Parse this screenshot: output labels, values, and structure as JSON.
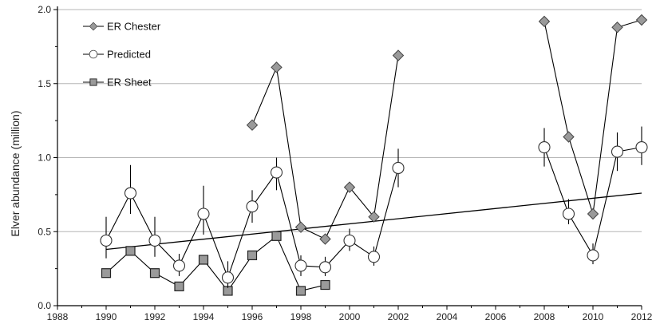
{
  "chart_data": {
    "type": "line",
    "title": "",
    "xlabel": "",
    "ylabel": "Elver abundance (million)",
    "xlim": [
      1988,
      2012
    ],
    "ylim": [
      0.0,
      2.0
    ],
    "x_ticks": [
      1988,
      1990,
      1992,
      1994,
      1996,
      1998,
      2000,
      2002,
      2004,
      2006,
      2008,
      2010,
      2012
    ],
    "y_ticks": [
      0.0,
      0.5,
      1.0,
      1.5,
      2.0
    ],
    "y_tick_labels": [
      "0.0",
      "0.5",
      "1.0",
      "1.5",
      "2.0"
    ],
    "grid": "horizontal",
    "legend": "top-left",
    "series": [
      {
        "name": "ER Chester",
        "marker": "diamond",
        "color": "#9a9a9a",
        "segments": [
          [
            [
              1996,
              1.22
            ],
            [
              1997,
              1.61
            ],
            [
              1998,
              0.53
            ],
            [
              1999,
              0.45
            ],
            [
              2000,
              0.8
            ],
            [
              2001,
              0.6
            ],
            [
              2002,
              1.69
            ]
          ],
          [
            [
              2008,
              1.92
            ],
            [
              2009,
              1.14
            ],
            [
              2010,
              0.62
            ],
            [
              2011,
              1.88
            ],
            [
              2012,
              1.93
            ]
          ]
        ]
      },
      {
        "name": "Predicted",
        "marker": "circle",
        "color": "#ffffff",
        "segments": [
          [
            [
              1990,
              0.44
            ],
            [
              1991,
              0.76
            ],
            [
              1992,
              0.44
            ],
            [
              1993,
              0.27
            ],
            [
              1994,
              0.62
            ],
            [
              1995,
              0.19
            ],
            [
              1996,
              0.67
            ],
            [
              1997,
              0.9
            ],
            [
              1998,
              0.27
            ],
            [
              1999,
              0.26
            ],
            [
              2000,
              0.44
            ],
            [
              2001,
              0.33
            ],
            [
              2002,
              0.93
            ]
          ],
          [
            [
              2008,
              1.07
            ],
            [
              2009,
              0.62
            ],
            [
              2010,
              0.34
            ],
            [
              2011,
              1.04
            ],
            [
              2012,
              1.07
            ]
          ]
        ],
        "error_bars": [
          [
            1990,
            0.32,
            0.6
          ],
          [
            1991,
            0.62,
            0.95
          ],
          [
            1992,
            0.33,
            0.6
          ],
          [
            1993,
            0.2,
            0.35
          ],
          [
            1994,
            0.48,
            0.81
          ],
          [
            1995,
            0.12,
            0.3
          ],
          [
            1996,
            0.56,
            0.78
          ],
          [
            1997,
            0.78,
            1.0
          ],
          [
            1998,
            0.2,
            0.34
          ],
          [
            1999,
            0.2,
            0.33
          ],
          [
            2000,
            0.37,
            0.52
          ],
          [
            2001,
            0.27,
            0.4
          ],
          [
            2002,
            0.8,
            1.06
          ],
          [
            2008,
            0.94,
            1.2
          ],
          [
            2009,
            0.55,
            0.72
          ],
          [
            2010,
            0.28,
            0.42
          ],
          [
            2011,
            0.91,
            1.17
          ],
          [
            2012,
            0.95,
            1.21
          ]
        ]
      },
      {
        "name": "ER Sheet",
        "marker": "square",
        "color": "#9a9a9a",
        "segments": [
          [
            [
              1990,
              0.22
            ],
            [
              1991,
              0.37
            ],
            [
              1992,
              0.22
            ],
            [
              1993,
              0.13
            ],
            [
              1994,
              0.31
            ],
            [
              1995,
              0.1
            ],
            [
              1996,
              0.34
            ],
            [
              1997,
              0.47
            ],
            [
              1998,
              0.1
            ],
            [
              1999,
              0.14
            ]
          ]
        ]
      }
    ],
    "trend_line": {
      "x": [
        1990,
        2012
      ],
      "y": [
        0.38,
        0.76
      ]
    }
  }
}
